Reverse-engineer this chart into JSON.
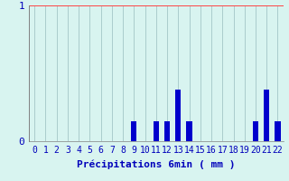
{
  "categories": [
    0,
    1,
    2,
    3,
    4,
    5,
    6,
    7,
    8,
    9,
    10,
    11,
    12,
    13,
    14,
    15,
    16,
    17,
    18,
    19,
    20,
    21,
    22
  ],
  "values": [
    0,
    0,
    0,
    0,
    0,
    0,
    0,
    0,
    0,
    0.15,
    0,
    0.15,
    0.15,
    0.38,
    0.15,
    0,
    0,
    0,
    0,
    0,
    0.15,
    0.38,
    0.15
  ],
  "bar_color": "#0000cc",
  "background_color": "#d8f4f0",
  "grid_color_v": "#aacccc",
  "grid_color_h": "#ff4444",
  "axis_color": "#808080",
  "text_color": "#0000bb",
  "ylim": [
    0,
    1.0
  ],
  "yticks": [
    0,
    1
  ],
  "xlabel": "Précipitations 6min ( mm )",
  "bar_width": 0.5,
  "xlabel_fontsize": 8,
  "tick_fontsize": 7
}
